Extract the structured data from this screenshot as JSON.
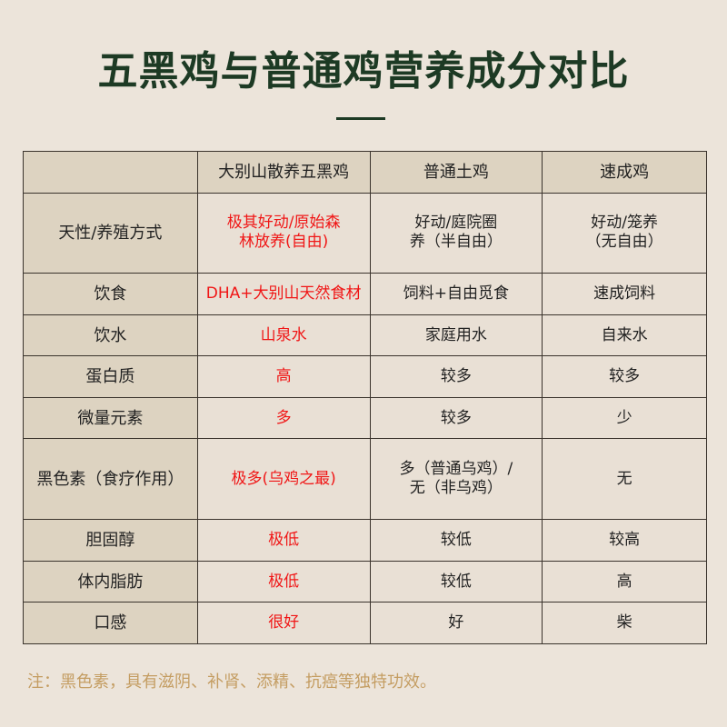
{
  "title": "五黑鸡与普通鸡营养成分对比",
  "colors": {
    "title": "#1d3a24",
    "highlight": "#f01616",
    "note": "#c49d62"
  },
  "table": {
    "headers": [
      "",
      "大别山散养五黑鸡",
      "普通土鸡",
      "速成鸡"
    ],
    "rows": [
      {
        "label": "天性/养殖方式",
        "values": [
          "极其好动/原始森\n林放养(自由)",
          "好动/庭院圈\n养（半自由）",
          "好动/笼养\n（无自由）"
        ]
      },
      {
        "label": "饮食",
        "values": [
          "DHA+大别山天然食材",
          "饲料+自由觅食",
          "速成饲料"
        ]
      },
      {
        "label": "饮水",
        "values": [
          "山泉水",
          "家庭用水",
          "自来水"
        ]
      },
      {
        "label": "蛋白质",
        "values": [
          "高",
          "较多",
          "较多"
        ]
      },
      {
        "label": "微量元素",
        "values": [
          "多",
          "较多",
          "少"
        ]
      },
      {
        "label": "黑色素（食疗作用）",
        "values": [
          "极多(乌鸡之最)",
          "多（普通乌鸡）/\n无（非乌鸡）",
          "无"
        ]
      },
      {
        "label": "胆固醇",
        "values": [
          "极低",
          "较低",
          "较高"
        ]
      },
      {
        "label": "体内脂肪",
        "values": [
          "极低",
          "较低",
          "高"
        ]
      },
      {
        "label": "口感",
        "values": [
          "很好",
          "好",
          "柴"
        ]
      }
    ]
  },
  "note": "注：黑色素，具有滋阴、补肾、添精、抗癌等独特功效。"
}
